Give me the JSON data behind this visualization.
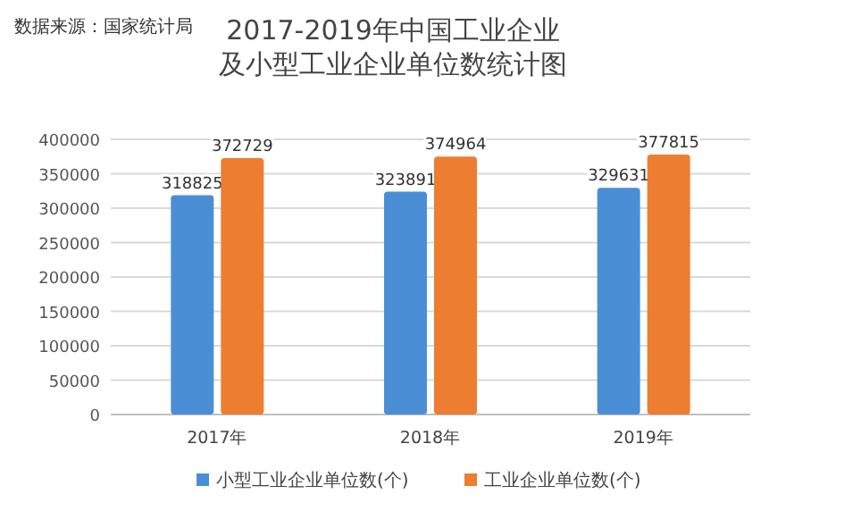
{
  "chart_data": {
    "type": "bar",
    "title": "2017-2019年中国工业企业及小型工业企业单位数统计图",
    "annotations": [
      "数据来源：国家统计局"
    ],
    "categories": [
      "2017年",
      "2018年",
      "2019年"
    ],
    "series": [
      {
        "name": "小型工业企业单位数(个)",
        "color": "#4a8fd6",
        "values": [
          318825,
          323891,
          329631
        ]
      },
      {
        "name": "工业企业单位数(个)",
        "color": "#ed7d31",
        "values": [
          372729,
          374964,
          377815
        ]
      }
    ],
    "ylim": [
      0,
      400000
    ],
    "yticks": [
      0,
      50000,
      100000,
      150000,
      200000,
      250000,
      300000,
      350000,
      400000
    ],
    "grid": "y",
    "legend": "bottom",
    "data_labels": true
  }
}
